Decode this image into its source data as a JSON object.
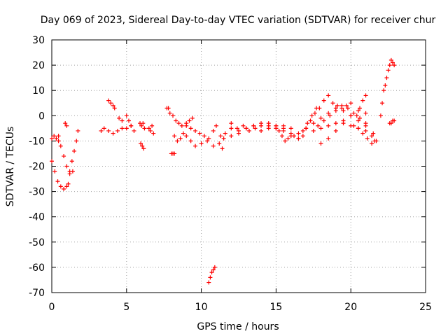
{
  "chart_data": {
    "type": "scatter",
    "title": "Day 069 of 2023, Sidereal Day-to-day VTEC variation (SDTVAR) for receiver chur",
    "xlabel": "GPS time / hours",
    "ylabel": "SDTVAR / TECUs",
    "xlim": [
      0,
      25
    ],
    "ylim": [
      -70,
      30
    ],
    "xticks": [
      0,
      5,
      10,
      15,
      20,
      25
    ],
    "yticks": [
      30,
      20,
      10,
      0,
      -10,
      -20,
      -30,
      -40,
      -50,
      -60,
      -70
    ],
    "grid": true,
    "marker": "+",
    "series_color": "#ff0000",
    "series": [
      {
        "name": "SDTVAR",
        "segments": [
          {
            "x": [
              0.0,
              0.15,
              0.3,
              0.45
            ],
            "y": [
              -9,
              -8,
              -9,
              -10
            ]
          },
          {
            "x": [
              0.0,
              0.2,
              0.4,
              0.6,
              0.8,
              1.0,
              1.1
            ],
            "y": [
              -18,
              -22,
              -26,
              -28,
              -29,
              -28,
              -27
            ]
          },
          {
            "x": [
              0.45,
              0.6,
              0.8,
              1.0,
              1.2,
              1.4
            ],
            "y": [
              -8,
              -12,
              -16,
              -20,
              -23,
              -22
            ]
          },
          {
            "x": [
              1.2,
              1.35,
              1.5,
              1.65,
              1.75
            ],
            "y": [
              -22,
              -18,
              -14,
              -10,
              -6
            ]
          },
          {
            "x": [
              0.9,
              1.0
            ],
            "y": [
              -3,
              -4
            ]
          },
          {
            "x": [
              3.3,
              3.5,
              3.8,
              4.1,
              4.4,
              4.7,
              5.0,
              5.3
            ],
            "y": [
              -6,
              -5,
              -6,
              -7,
              -6,
              -5,
              -5,
              -4
            ]
          },
          {
            "x": [
              3.8,
              3.95,
              4.1,
              4.2
            ],
            "y": [
              6,
              5,
              4,
              3
            ]
          },
          {
            "x": [
              4.5,
              4.7
            ],
            "y": [
              -1,
              -2
            ]
          },
          {
            "x": [
              5.0,
              5.15,
              5.3,
              5.5
            ],
            "y": [
              0,
              -2,
              -4,
              -6
            ]
          },
          {
            "x": [
              5.9,
              6.0,
              6.1,
              6.2
            ],
            "y": [
              -3,
              -4,
              -3,
              -5
            ]
          },
          {
            "x": [
              5.95,
              6.05,
              6.15
            ],
            "y": [
              -11,
              -12,
              -13
            ]
          },
          {
            "x": [
              6.5,
              6.6,
              6.7,
              6.8
            ],
            "y": [
              -5,
              -6,
              -4,
              -7
            ]
          },
          {
            "x": [
              7.7,
              7.8
            ],
            "y": [
              3,
              3
            ]
          },
          {
            "x": [
              8.0,
              8.1,
              8.2
            ],
            "y": [
              -15,
              -15,
              -15
            ]
          },
          {
            "x": [
              7.9,
              8.1,
              8.3,
              8.5,
              8.7,
              9.0,
              9.2,
              9.4
            ],
            "y": [
              1,
              0,
              -2,
              -3,
              -4,
              -3,
              -2,
              -1
            ]
          },
          {
            "x": [
              8.2,
              8.4,
              8.6,
              8.8,
              9.0,
              9.3,
              9.6,
              10.0,
              10.4,
              10.8,
              11.2,
              11.4
            ],
            "y": [
              -8,
              -10,
              -9,
              -7,
              -8,
              -10,
              -12,
              -11,
              -10,
              -12,
              -11,
              -13
            ]
          },
          {
            "x": [
              9.0,
              9.3,
              9.6,
              9.9,
              10.2,
              10.5
            ],
            "y": [
              -4,
              -5,
              -6,
              -7,
              -8,
              -9
            ]
          },
          {
            "x": [
              10.5,
              10.6,
              10.7,
              10.8,
              10.9
            ],
            "y": [
              -66,
              -64,
              -62,
              -61,
              -60
            ]
          },
          {
            "x": [
              10.8,
              11.0,
              11.3,
              11.6,
              12.0,
              12.4,
              12.8,
              13.2,
              13.6,
              14.0,
              14.5,
              15.0,
              15.5
            ],
            "y": [
              -6,
              -4,
              -8,
              -7,
              -3,
              -5,
              -4,
              -6,
              -5,
              -4,
              -3,
              -5,
              -4
            ]
          },
          {
            "x": [
              11.5,
              12.0,
              12.5,
              13.0,
              13.5,
              14.0,
              14.5,
              15.0,
              15.5,
              16.0
            ],
            "y": [
              -9,
              -8,
              -7,
              -5,
              -4,
              -3,
              -4,
              -5,
              -6,
              -5
            ]
          },
          {
            "x": [
              12.0,
              12.5,
              13.0,
              13.5,
              14.0,
              14.5,
              15.0,
              15.5
            ],
            "y": [
              -5,
              -6,
              -5,
              -4,
              -6,
              -5,
              -4,
              -5
            ]
          },
          {
            "x": [
              15.0,
              15.2,
              15.4,
              15.6,
              15.8,
              16.0,
              16.2,
              16.5,
              16.8
            ],
            "y": [
              -4,
              -6,
              -8,
              -10,
              -9,
              -7,
              -8,
              -9,
              -8
            ]
          },
          {
            "x": [
              16.0,
              16.5,
              17.0,
              17.5,
              18.0,
              18.5,
              19.0,
              19.5,
              20.0,
              20.5,
              21.0
            ],
            "y": [
              -8,
              -7,
              -5,
              -3,
              -1,
              1,
              3,
              2,
              0,
              -2,
              -3
            ]
          },
          {
            "x": [
              16.5,
              16.8,
              17.1,
              17.4,
              17.7
            ],
            "y": [
              -9,
              -6,
              -3,
              0,
              3
            ]
          },
          {
            "x": [
              17.0,
              17.3,
              17.6,
              17.9,
              18.2,
              18.5
            ],
            "y": [
              -5,
              -2,
              1,
              3,
              6,
              8
            ]
          },
          {
            "x": [
              17.5,
              18.0,
              18.5,
              19.0,
              19.5,
              20.0,
              20.5,
              21.0,
              21.5
            ],
            "y": [
              -6,
              -5,
              -4,
              -3,
              -2,
              -4,
              -5,
              -6,
              -7
            ]
          },
          {
            "x": [
              17.8,
              18.2,
              18.6,
              19.0,
              19.4,
              19.8,
              20.2,
              20.6,
              21.0,
              21.4,
              21.6
            ],
            "y": [
              -4,
              -2,
              0,
              2,
              4,
              3,
              1,
              -1,
              -4,
              -8,
              -10
            ]
          },
          {
            "x": [
              18.0,
              18.5,
              19.0,
              19.5,
              20.0,
              20.5,
              21.0
            ],
            "y": [
              -11,
              -9,
              -6,
              -3,
              0,
              2,
              1
            ]
          },
          {
            "x": [
              18.8,
              19.1,
              19.4,
              19.7,
              20.0
            ],
            "y": [
              5,
              4,
              3,
              4,
              5
            ]
          },
          {
            "x": [
              20.2,
              20.4,
              20.6,
              20.8,
              21.0
            ],
            "y": [
              -4,
              0,
              3,
              6,
              8
            ]
          },
          {
            "x": [
              20.5,
              20.8,
              21.1,
              21.4,
              21.7
            ],
            "y": [
              -5,
              -7,
              -9,
              -11,
              -10
            ]
          },
          {
            "x": [
              22.0,
              22.1,
              22.2,
              22.3,
              22.4,
              22.5,
              22.6,
              22.7,
              22.8,
              22.9
            ],
            "y": [
              0,
              5,
              10,
              12,
              15,
              18,
              20,
              22,
              21,
              20
            ]
          },
          {
            "x": [
              22.6,
              22.7,
              22.8,
              22.9
            ],
            "y": [
              -3,
              -3,
              -2,
              -2
            ]
          }
        ]
      }
    ]
  }
}
